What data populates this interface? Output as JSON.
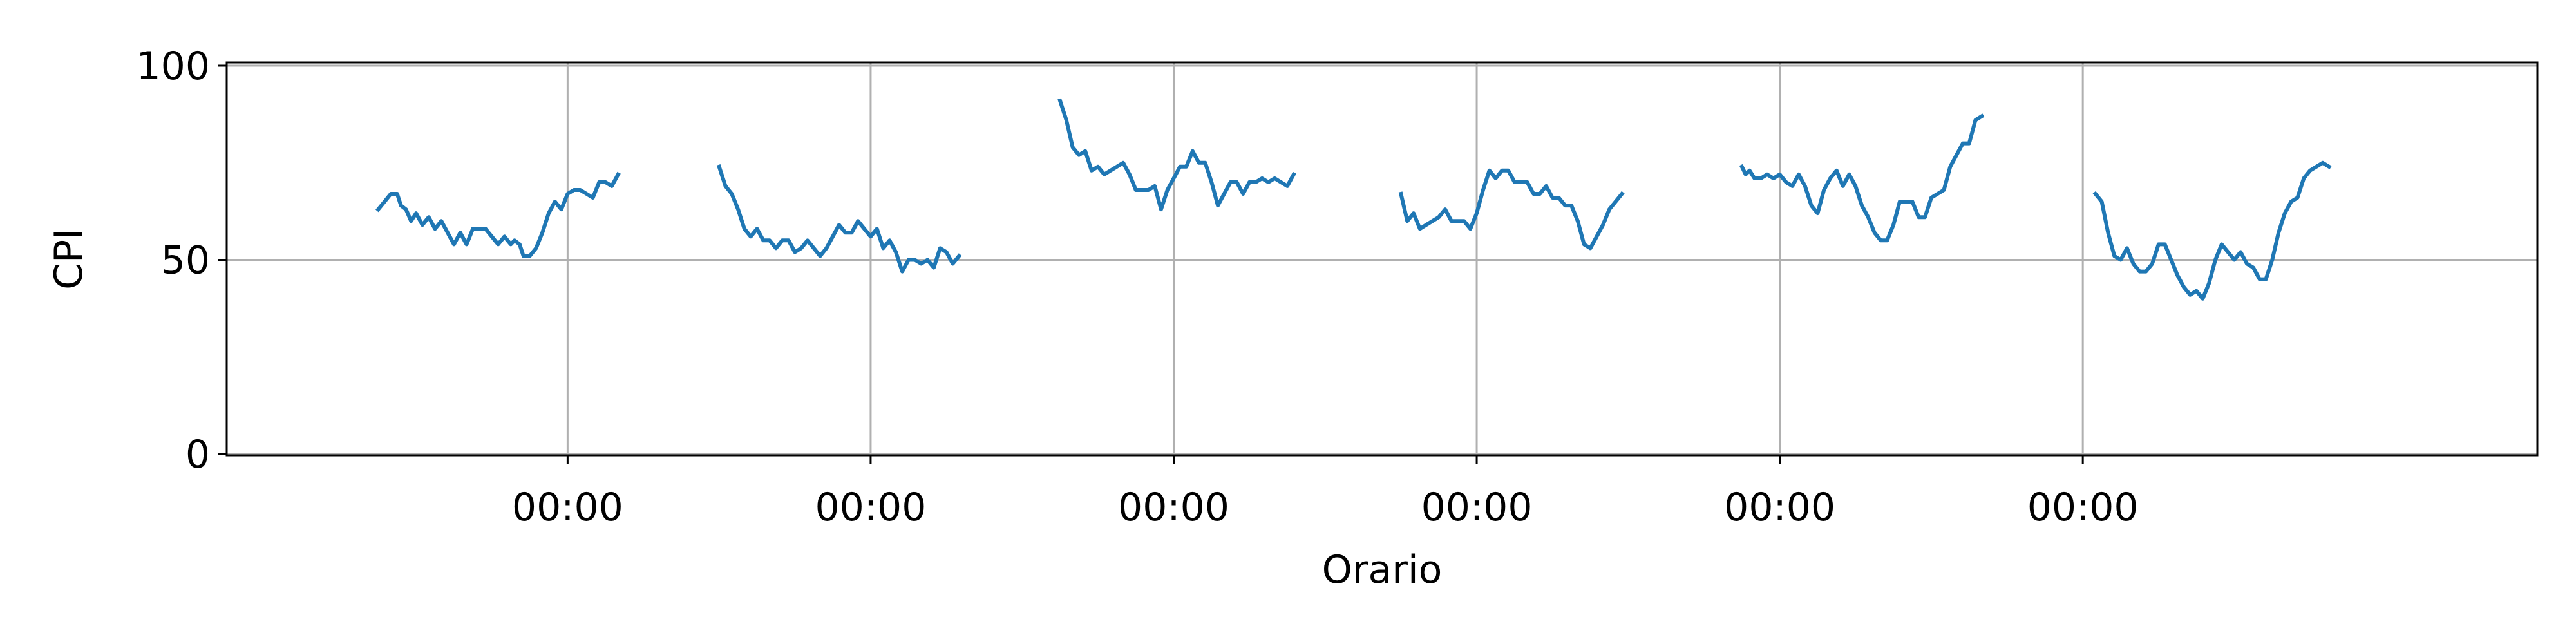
{
  "chart_data": {
    "type": "line",
    "xlabel": "Orario",
    "ylabel": "CPI",
    "ylim": [
      0,
      100
    ],
    "y_ticks": [
      "0",
      "50",
      "100"
    ],
    "x_tick_labels": [
      "00:00",
      "00:00",
      "00:00",
      "00:00",
      "00:00",
      "00:00"
    ],
    "xlim_hours": [
      -27,
      156
    ],
    "grid": true,
    "series_color": "#1f77b4",
    "segments": [
      [
        [
          -15.0,
          63
        ],
        [
          -14.5,
          65
        ],
        [
          -14.0,
          67
        ],
        [
          -13.5,
          67
        ],
        [
          -13.2,
          64
        ],
        [
          -12.8,
          63
        ],
        [
          -12.4,
          60
        ],
        [
          -12.0,
          62
        ],
        [
          -11.5,
          59
        ],
        [
          -11.0,
          61
        ],
        [
          -10.5,
          58
        ],
        [
          -10.0,
          60
        ],
        [
          -9.5,
          57
        ],
        [
          -9.0,
          54
        ],
        [
          -8.5,
          57
        ],
        [
          -8.0,
          54
        ],
        [
          -7.5,
          58
        ],
        [
          -7.0,
          58
        ],
        [
          -6.5,
          58
        ],
        [
          -6.0,
          56
        ],
        [
          -5.5,
          54
        ],
        [
          -5.0,
          56
        ],
        [
          -4.5,
          54
        ],
        [
          -4.2,
          55
        ],
        [
          -3.8,
          54
        ],
        [
          -3.5,
          51
        ],
        [
          -3.0,
          51
        ],
        [
          -2.5,
          53
        ],
        [
          -2.0,
          57
        ],
        [
          -1.5,
          62
        ],
        [
          -1.0,
          65
        ],
        [
          -0.5,
          63
        ],
        [
          0,
          67
        ],
        [
          0.5,
          68
        ],
        [
          1.0,
          68
        ],
        [
          1.5,
          67
        ],
        [
          2.0,
          66
        ],
        [
          2.5,
          70
        ],
        [
          3.0,
          70
        ],
        [
          3.5,
          69
        ],
        [
          4.0,
          72
        ]
      ],
      [
        [
          12.0,
          74
        ],
        [
          12.5,
          69
        ],
        [
          13.0,
          67
        ],
        [
          13.5,
          63
        ],
        [
          14.0,
          58
        ],
        [
          14.5,
          56
        ],
        [
          15.0,
          58
        ],
        [
          15.5,
          55
        ],
        [
          16.0,
          55
        ],
        [
          16.5,
          53
        ],
        [
          17.0,
          55
        ],
        [
          17.5,
          55
        ],
        [
          18.0,
          52
        ],
        [
          18.5,
          53
        ],
        [
          19.0,
          55
        ],
        [
          19.5,
          53
        ],
        [
          20.0,
          51
        ],
        [
          20.5,
          53
        ],
        [
          21.0,
          56
        ],
        [
          21.5,
          59
        ],
        [
          22.0,
          57
        ],
        [
          22.5,
          57
        ],
        [
          23.0,
          60
        ],
        [
          23.5,
          58
        ],
        [
          24.0,
          56
        ],
        [
          24.5,
          58
        ],
        [
          25.0,
          53
        ],
        [
          25.5,
          55
        ],
        [
          26.0,
          52
        ],
        [
          26.5,
          47
        ],
        [
          27.0,
          50
        ],
        [
          27.5,
          50
        ],
        [
          28.0,
          49
        ],
        [
          28.5,
          50
        ],
        [
          29.0,
          48
        ],
        [
          29.5,
          53
        ],
        [
          30.0,
          52
        ],
        [
          30.5,
          49
        ],
        [
          31.0,
          51
        ]
      ],
      [
        [
          39.0,
          91
        ],
        [
          39.5,
          86
        ],
        [
          40.0,
          79
        ],
        [
          40.5,
          77
        ],
        [
          41.0,
          78
        ],
        [
          41.5,
          73
        ],
        [
          42.0,
          74
        ],
        [
          42.5,
          72
        ],
        [
          43.0,
          73
        ],
        [
          43.5,
          74
        ],
        [
          44.0,
          75
        ],
        [
          44.5,
          72
        ],
        [
          45.0,
          68
        ],
        [
          45.5,
          68
        ],
        [
          46.0,
          68
        ],
        [
          46.5,
          69
        ],
        [
          47.0,
          63
        ],
        [
          47.5,
          68
        ],
        [
          48.0,
          71
        ],
        [
          48.5,
          74
        ],
        [
          49.0,
          74
        ],
        [
          49.5,
          78
        ],
        [
          50.0,
          75
        ],
        [
          50.5,
          75
        ],
        [
          51.0,
          70
        ],
        [
          51.5,
          64
        ],
        [
          52.0,
          67
        ],
        [
          52.5,
          70
        ],
        [
          53.0,
          70
        ],
        [
          53.5,
          67
        ],
        [
          54.0,
          70
        ],
        [
          54.5,
          70
        ],
        [
          55.0,
          71
        ],
        [
          55.5,
          70
        ],
        [
          56.0,
          71
        ],
        [
          56.5,
          70
        ],
        [
          57.0,
          69
        ],
        [
          57.5,
          72
        ]
      ],
      [
        [
          66.0,
          67
        ],
        [
          66.5,
          60
        ],
        [
          67.0,
          62
        ],
        [
          67.5,
          58
        ],
        [
          68.0,
          59
        ],
        [
          68.5,
          60
        ],
        [
          69.0,
          61
        ],
        [
          69.5,
          63
        ],
        [
          70.0,
          60
        ],
        [
          70.5,
          60
        ],
        [
          71.0,
          60
        ],
        [
          71.5,
          58
        ],
        [
          72.0,
          62
        ],
        [
          72.5,
          68
        ],
        [
          73.0,
          73
        ],
        [
          73.5,
          71
        ],
        [
          74.0,
          73
        ],
        [
          74.5,
          73
        ],
        [
          75.0,
          70
        ],
        [
          75.5,
          70
        ],
        [
          76.0,
          70
        ],
        [
          76.5,
          67
        ],
        [
          77.0,
          67
        ],
        [
          77.5,
          69
        ],
        [
          78.0,
          66
        ],
        [
          78.5,
          66
        ],
        [
          79.0,
          64
        ],
        [
          79.5,
          64
        ],
        [
          80.0,
          60
        ],
        [
          80.5,
          54
        ],
        [
          81.0,
          53
        ],
        [
          81.5,
          56
        ],
        [
          82.0,
          59
        ],
        [
          82.5,
          63
        ],
        [
          83.0,
          65
        ],
        [
          83.5,
          67
        ]
      ],
      [
        [
          93.0,
          74
        ],
        [
          93.3,
          72
        ],
        [
          93.6,
          73
        ],
        [
          94.0,
          71
        ],
        [
          94.5,
          71
        ],
        [
          95.0,
          72
        ],
        [
          95.5,
          71
        ],
        [
          96.0,
          72
        ],
        [
          96.5,
          70
        ],
        [
          97.0,
          69
        ],
        [
          97.5,
          72
        ],
        [
          98.0,
          69
        ],
        [
          98.5,
          64
        ],
        [
          99.0,
          62
        ],
        [
          99.5,
          68
        ],
        [
          100.0,
          71
        ],
        [
          100.5,
          73
        ],
        [
          101.0,
          69
        ],
        [
          101.5,
          72
        ],
        [
          102.0,
          69
        ],
        [
          102.5,
          64
        ],
        [
          103.0,
          61
        ],
        [
          103.5,
          57
        ],
        [
          104.0,
          55
        ],
        [
          104.5,
          55
        ],
        [
          105.0,
          59
        ],
        [
          105.5,
          65
        ],
        [
          106.0,
          65
        ],
        [
          106.5,
          65
        ],
        [
          107.0,
          61
        ],
        [
          107.5,
          61
        ],
        [
          108.0,
          66
        ],
        [
          108.5,
          67
        ],
        [
          109.0,
          68
        ],
        [
          109.5,
          74
        ],
        [
          110.0,
          77
        ],
        [
          110.5,
          80
        ],
        [
          111.0,
          80
        ],
        [
          111.5,
          86
        ],
        [
          112.0,
          87
        ]
      ],
      [
        [
          121.0,
          67
        ],
        [
          121.5,
          65
        ],
        [
          122.0,
          57
        ],
        [
          122.5,
          51
        ],
        [
          123.0,
          50
        ],
        [
          123.5,
          53
        ],
        [
          124.0,
          49
        ],
        [
          124.5,
          47
        ],
        [
          125.0,
          47
        ],
        [
          125.5,
          49
        ],
        [
          126.0,
          54
        ],
        [
          126.5,
          54
        ],
        [
          127.0,
          50
        ],
        [
          127.5,
          46
        ],
        [
          128.0,
          43
        ],
        [
          128.5,
          41
        ],
        [
          129.0,
          42
        ],
        [
          129.5,
          40
        ],
        [
          130.0,
          44
        ],
        [
          130.5,
          50
        ],
        [
          131.0,
          54
        ],
        [
          131.5,
          52
        ],
        [
          132.0,
          50
        ],
        [
          132.5,
          52
        ],
        [
          133.0,
          49
        ],
        [
          133.5,
          48
        ],
        [
          134.0,
          45
        ],
        [
          134.5,
          45
        ],
        [
          135.0,
          50
        ],
        [
          135.5,
          57
        ],
        [
          136.0,
          62
        ],
        [
          136.5,
          65
        ],
        [
          137.0,
          66
        ],
        [
          137.5,
          71
        ],
        [
          138.0,
          73
        ],
        [
          138.5,
          74
        ],
        [
          139.0,
          75
        ],
        [
          139.5,
          74
        ]
      ]
    ]
  }
}
